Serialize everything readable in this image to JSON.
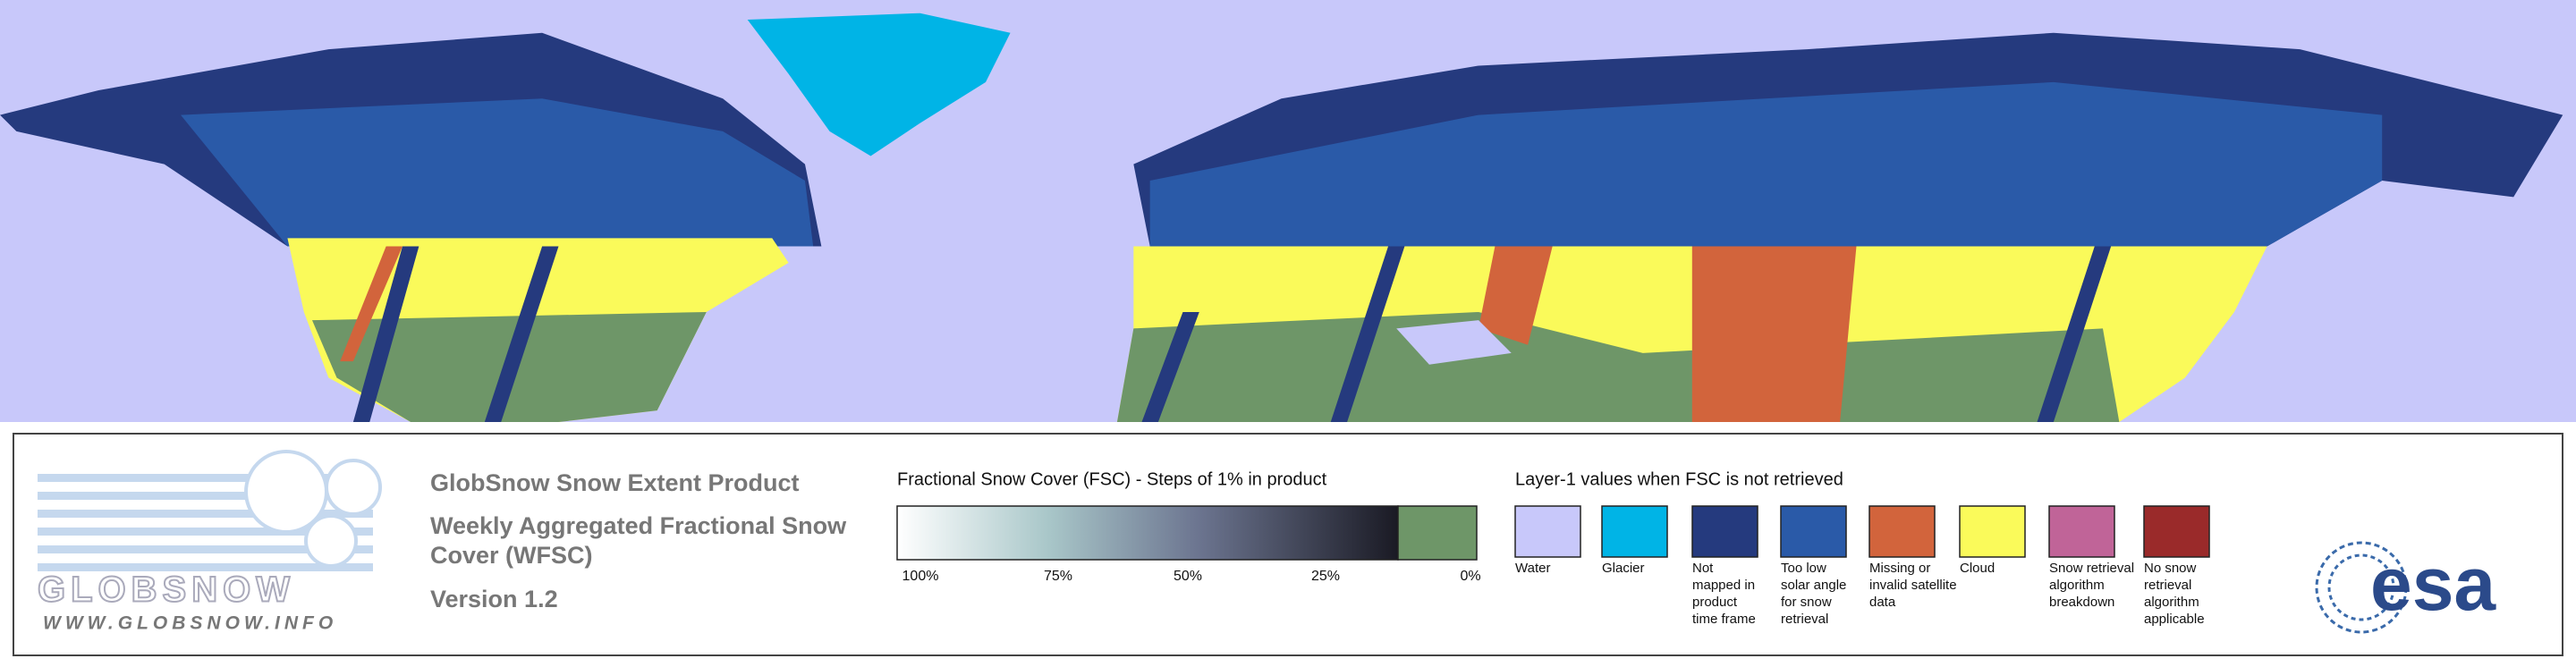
{
  "product": {
    "title": "GlobSnow Snow Extent Product",
    "subtitle_lines": [
      "Weekly Aggregated Fractional Snow",
      "Cover (WFSC)"
    ],
    "version": "Version 1.2"
  },
  "logo": {
    "name": "GLOBSNOW",
    "url": "WWW.GLOBSNOW.INFO",
    "agency": "esa"
  },
  "fsc_legend": {
    "title": "Fractional Snow Cover (FSC) - Steps of 1% in product",
    "ticks": [
      "100%",
      "75%",
      "50%",
      "25%",
      "0%"
    ]
  },
  "layer1_legend": {
    "title": "Layer-1 values when FSC is not retrieved",
    "items": [
      {
        "color": "#c8c8fa",
        "lines": [
          "Water"
        ]
      },
      {
        "color": "#00b4e6",
        "lines": [
          "Glacier"
        ]
      },
      {
        "color": "#253a7e",
        "lines": [
          "Not",
          "mapped in",
          "product",
          "time frame"
        ]
      },
      {
        "color": "#2a5aa8",
        "lines": [
          "Too low",
          "solar angle",
          "for snow",
          "retrieval"
        ]
      },
      {
        "color": "#d2643c",
        "lines": [
          "Missing or",
          "invalid satellite",
          "data"
        ]
      },
      {
        "color": "#fafa5a",
        "lines": [
          "Cloud"
        ]
      },
      {
        "color": "#c06498",
        "lines": [
          "Snow retrieval",
          "algorithm",
          "breakdown"
        ]
      },
      {
        "color": "#9a2a2a",
        "lines": [
          "No snow",
          "retrieval",
          "algorithm",
          "applicable"
        ]
      }
    ]
  }
}
